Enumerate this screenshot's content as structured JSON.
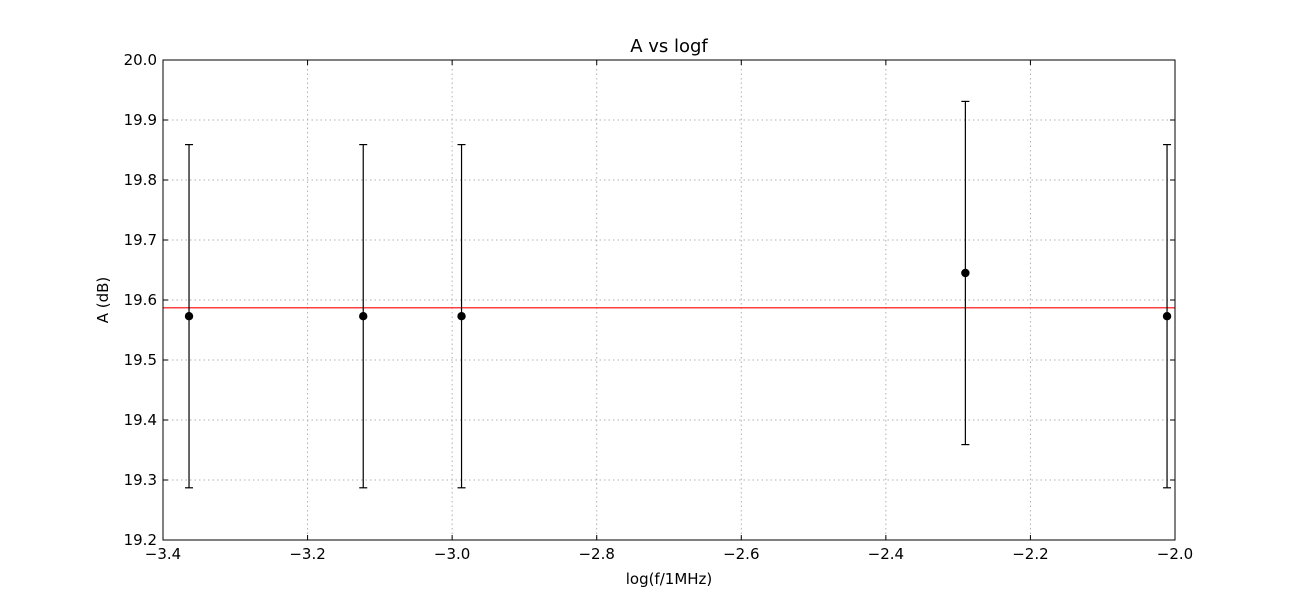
{
  "chart_data": {
    "type": "scatter",
    "title": "A vs logf",
    "xlabel": "log(f/1MHz)",
    "ylabel": "A (dB)",
    "xlim": [
      -3.4,
      -2.0
    ],
    "ylim": [
      19.2,
      20.0
    ],
    "x_ticks": [
      -3.4,
      -3.2,
      -3.0,
      -2.8,
      -2.6,
      -2.4,
      -2.2,
      -2.0
    ],
    "x_tick_labels": [
      "−3.4",
      "−3.2",
      "−3.0",
      "−2.8",
      "−2.6",
      "−2.4",
      "−2.2",
      "−2.0"
    ],
    "y_ticks": [
      19.2,
      19.3,
      19.4,
      19.5,
      19.6,
      19.7,
      19.8,
      19.9,
      20.0
    ],
    "y_tick_labels": [
      "19.2",
      "19.3",
      "19.4",
      "19.5",
      "19.6",
      "19.7",
      "19.8",
      "19.9",
      "20.0"
    ],
    "grid": true,
    "series": [
      {
        "marker": "circle",
        "color": "#000000",
        "points": [
          {
            "x": -3.364,
            "y": 19.573,
            "err_low": 19.287,
            "err_high": 19.859
          },
          {
            "x": -3.123,
            "y": 19.573,
            "err_low": 19.287,
            "err_high": 19.859
          },
          {
            "x": -2.987,
            "y": 19.573,
            "err_low": 19.287,
            "err_high": 19.859
          },
          {
            "x": -2.29,
            "y": 19.645,
            "err_low": 19.359,
            "err_high": 19.931
          },
          {
            "x": -2.011,
            "y": 19.573,
            "err_low": 19.287,
            "err_high": 19.859
          }
        ]
      }
    ],
    "fit_line": {
      "color": "#ff0000",
      "y": 19.587
    }
  }
}
